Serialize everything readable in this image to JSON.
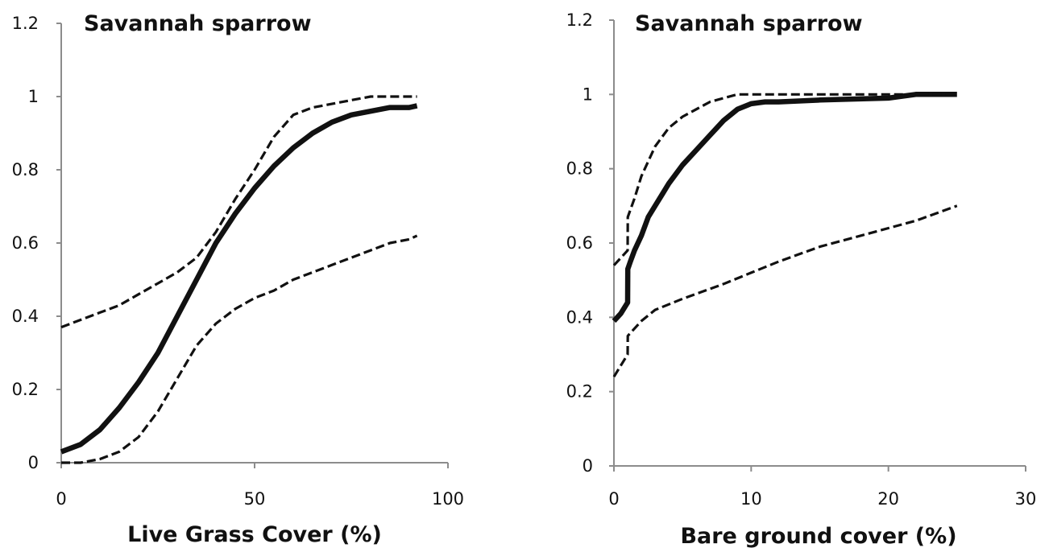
{
  "chart_data": [
    {
      "type": "line",
      "title": "Savannah sparrow",
      "xlabel": "Live Grass Cover (%)",
      "ylabel": "",
      "xlim": [
        0,
        100
      ],
      "ylim": [
        0,
        1.2
      ],
      "xticks": [
        "0",
        "50",
        "100"
      ],
      "yticks": [
        "0",
        "0.2",
        "0.4",
        "0.6",
        "0.8",
        "1",
        "1.2"
      ],
      "series": [
        {
          "style": "solid",
          "x": [
            0,
            5,
            10,
            15,
            20,
            25,
            30,
            35,
            40,
            45,
            50,
            55,
            60,
            65,
            70,
            75,
            80,
            85,
            90,
            92
          ],
          "y": [
            0.03,
            0.05,
            0.09,
            0.15,
            0.22,
            0.3,
            0.4,
            0.5,
            0.6,
            0.68,
            0.75,
            0.81,
            0.86,
            0.9,
            0.93,
            0.95,
            0.96,
            0.97,
            0.97,
            0.975
          ]
        },
        {
          "style": "dashed",
          "x": [
            0,
            5,
            10,
            15,
            20,
            25,
            30,
            35,
            40,
            45,
            50,
            55,
            60,
            65,
            70,
            75,
            80,
            85,
            90,
            92
          ],
          "y": [
            0.37,
            0.39,
            0.41,
            0.43,
            0.46,
            0.49,
            0.52,
            0.56,
            0.63,
            0.72,
            0.8,
            0.89,
            0.95,
            0.97,
            0.98,
            0.99,
            1.0,
            1.0,
            1.0,
            1.0
          ]
        },
        {
          "style": "dashed",
          "x": [
            0,
            5,
            10,
            15,
            20,
            25,
            30,
            35,
            40,
            45,
            50,
            55,
            60,
            65,
            70,
            75,
            80,
            85,
            90,
            92
          ],
          "y": [
            0.0,
            0.0,
            0.01,
            0.03,
            0.07,
            0.14,
            0.23,
            0.32,
            0.38,
            0.42,
            0.45,
            0.47,
            0.5,
            0.52,
            0.54,
            0.56,
            0.58,
            0.6,
            0.61,
            0.62
          ]
        }
      ]
    },
    {
      "type": "line",
      "title": "Savannah sparrow",
      "xlabel": "Bare ground cover (%)",
      "ylabel": "",
      "xlim": [
        0,
        30
      ],
      "ylim": [
        0,
        1.2
      ],
      "xticks": [
        "0",
        "10",
        "20",
        "30"
      ],
      "yticks": [
        "0",
        "0.2",
        "0.4",
        "0.6",
        "0.8",
        "1",
        "1.2"
      ],
      "series": [
        {
          "style": "solid",
          "x": [
            0,
            0.5,
            1,
            1.01,
            1.2,
            1.5,
            2,
            2.5,
            3,
            3.5,
            4,
            5,
            6,
            7,
            8,
            9,
            10,
            11,
            12,
            15,
            20,
            22,
            25
          ],
          "y": [
            0.39,
            0.41,
            0.44,
            0.53,
            0.55,
            0.58,
            0.62,
            0.67,
            0.7,
            0.73,
            0.76,
            0.81,
            0.85,
            0.89,
            0.93,
            0.96,
            0.975,
            0.98,
            0.98,
            0.985,
            0.99,
            1.0,
            1.0
          ]
        },
        {
          "style": "dashed",
          "x": [
            0,
            0.5,
            1,
            1.01,
            1.5,
            2,
            3,
            4,
            5,
            6,
            7,
            8,
            9,
            10,
            15,
            20,
            25
          ],
          "y": [
            0.54,
            0.56,
            0.58,
            0.67,
            0.72,
            0.78,
            0.86,
            0.91,
            0.94,
            0.96,
            0.98,
            0.99,
            1.0,
            1.0,
            1.0,
            1.0,
            1.0
          ]
        },
        {
          "style": "dashed",
          "x": [
            0,
            0.5,
            1,
            1.01,
            2,
            3,
            5,
            8,
            10,
            12,
            15,
            18,
            20,
            22,
            25
          ],
          "y": [
            0.24,
            0.27,
            0.3,
            0.35,
            0.39,
            0.42,
            0.45,
            0.49,
            0.52,
            0.55,
            0.59,
            0.62,
            0.64,
            0.66,
            0.7
          ]
        }
      ]
    }
  ]
}
